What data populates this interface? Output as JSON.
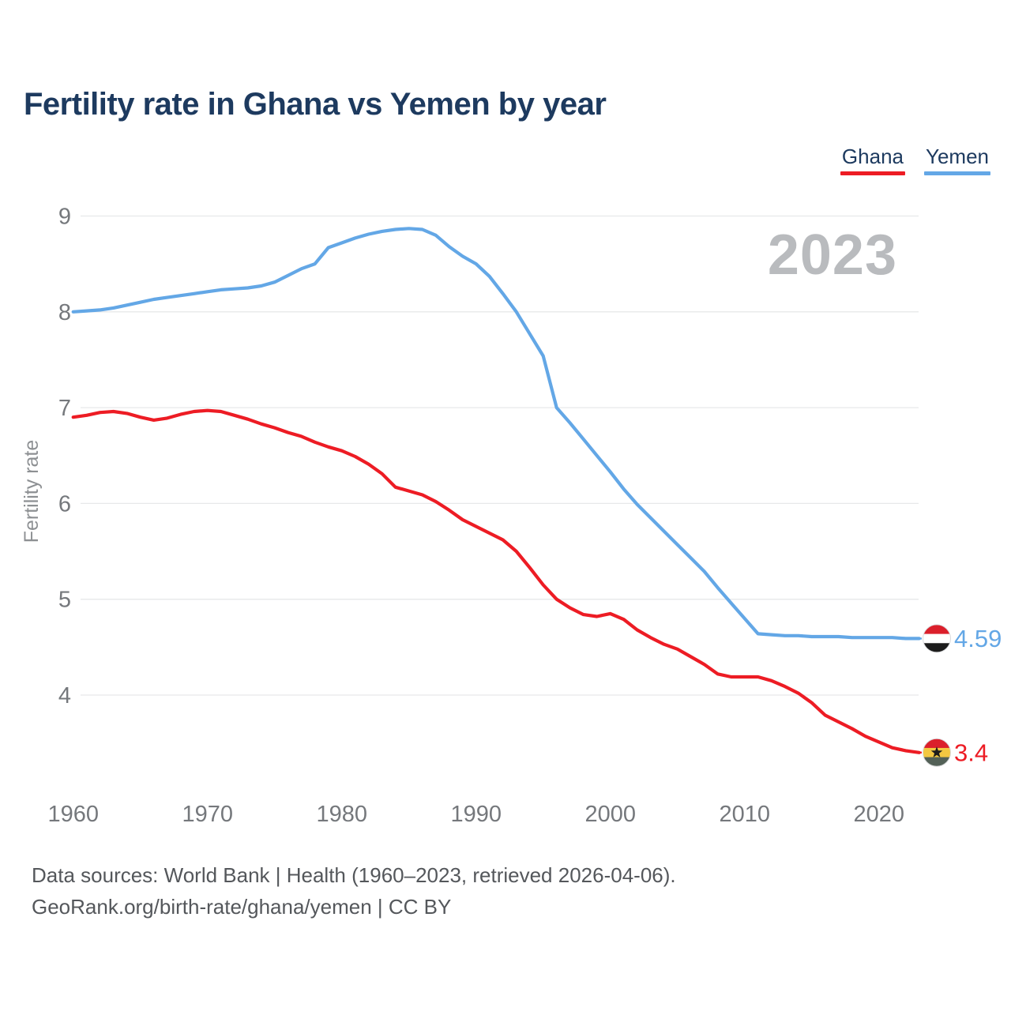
{
  "header": {
    "title": "Fertility rate in Ghana vs Yemen by year"
  },
  "legend": {
    "items": [
      {
        "label": "Ghana",
        "color": "#ed1c24"
      },
      {
        "label": "Yemen",
        "color": "#63a7e6"
      }
    ]
  },
  "chart_data": {
    "type": "line",
    "title": "Fertility rate in Ghana vs Yemen by year",
    "xlabel": "",
    "ylabel": "Fertility rate",
    "watermark": "2023",
    "grid": "horizontal",
    "legend_position": "top-right",
    "x_ticks": [
      1960,
      1970,
      1980,
      1990,
      2000,
      2010,
      2020
    ],
    "y_ticks": [
      4,
      5,
      6,
      7,
      8,
      9
    ],
    "xlim": [
      1960,
      2023
    ],
    "ylim": [
      4,
      9
    ],
    "x": [
      1960,
      1961,
      1962,
      1963,
      1964,
      1965,
      1966,
      1967,
      1968,
      1969,
      1970,
      1971,
      1972,
      1973,
      1974,
      1975,
      1976,
      1977,
      1978,
      1979,
      1980,
      1981,
      1982,
      1983,
      1984,
      1985,
      1986,
      1987,
      1988,
      1989,
      1990,
      1991,
      1992,
      1993,
      1994,
      1995,
      1996,
      1997,
      1998,
      1999,
      2000,
      2001,
      2002,
      2003,
      2004,
      2005,
      2006,
      2007,
      2008,
      2009,
      2010,
      2011,
      2012,
      2013,
      2014,
      2015,
      2016,
      2017,
      2018,
      2019,
      2020,
      2021,
      2022,
      2023
    ],
    "series": [
      {
        "name": "Yemen",
        "color": "#63a7e6",
        "end_label": "4.59",
        "flag": "yemen",
        "flag_colors": [
          "#db1f2b",
          "#ffffff",
          "#1c1c1c"
        ],
        "values": [
          8.0,
          8.01,
          8.02,
          8.04,
          8.07,
          8.1,
          8.13,
          8.15,
          8.17,
          8.19,
          8.21,
          8.23,
          8.24,
          8.25,
          8.27,
          8.31,
          8.38,
          8.45,
          8.5,
          8.67,
          8.72,
          8.77,
          8.81,
          8.84,
          8.86,
          8.87,
          8.86,
          8.8,
          8.68,
          8.58,
          8.5,
          8.37,
          8.19,
          8.0,
          7.77,
          7.54,
          7.0,
          6.84,
          6.67,
          6.5,
          6.33,
          6.15,
          5.99,
          5.85,
          5.71,
          5.57,
          5.43,
          5.29,
          5.12,
          4.96,
          4.8,
          4.64,
          4.63,
          4.62,
          4.62,
          4.61,
          4.61,
          4.61,
          4.6,
          4.6,
          4.6,
          4.6,
          4.59,
          4.59
        ]
      },
      {
        "name": "Ghana",
        "color": "#ed1c24",
        "end_label": "3.4",
        "flag": "ghana",
        "flag_colors": [
          "#db1f2b",
          "#f3c841",
          "#536157"
        ],
        "star_color": "#1c1c1c",
        "values": [
          6.9,
          6.92,
          6.95,
          6.96,
          6.94,
          6.9,
          6.87,
          6.89,
          6.93,
          6.96,
          6.97,
          6.96,
          6.92,
          6.88,
          6.83,
          6.79,
          6.74,
          6.7,
          6.64,
          6.59,
          6.55,
          6.49,
          6.41,
          6.31,
          6.17,
          6.13,
          6.09,
          6.02,
          5.93,
          5.83,
          5.76,
          5.69,
          5.62,
          5.5,
          5.33,
          5.15,
          5.0,
          4.91,
          4.84,
          4.82,
          4.85,
          4.79,
          4.68,
          4.6,
          4.53,
          4.48,
          4.4,
          4.32,
          4.22,
          4.19,
          4.19,
          4.19,
          4.15,
          4.09,
          4.02,
          3.92,
          3.79,
          3.72,
          3.65,
          3.57,
          3.51,
          3.45,
          3.42,
          3.4
        ]
      }
    ]
  },
  "style_colors": {
    "title": "#1d3a5f",
    "grid": "#e7e8ea",
    "tick_text": "#75787c",
    "axis_title_text": "#8d9093",
    "watermark": "#b9bbbe",
    "footer_text": "#54575b"
  },
  "footer": {
    "line1": "Data sources: World Bank | Health (1960–2023, retrieved 2026-04-06).",
    "line2": "GeoRank.org/birth-rate/ghana/yemen | CC BY"
  }
}
